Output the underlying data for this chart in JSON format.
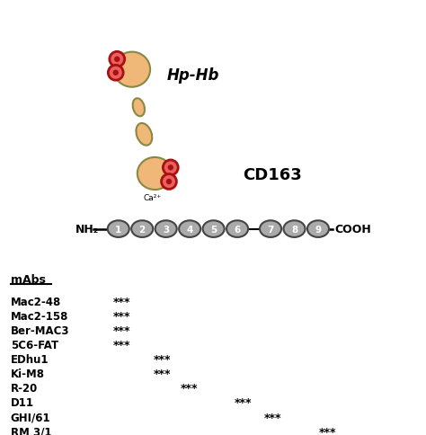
{
  "bg_color": "#ffffff",
  "domain_color": "#aaaaaa",
  "domain_edge_color": "#444444",
  "hp_hb_color": "#f0b878",
  "hp_hb_edge_color": "#888844",
  "heme_outer_color": "#e86060",
  "heme_inner_color": "#aa1010",
  "domains": [
    1,
    2,
    3,
    4,
    5,
    6,
    7,
    8,
    9
  ],
  "mabs_labels": [
    "Mac2-48",
    "Mac2-158",
    "Ber-MAC3",
    "5C6-FAT",
    "EDhu1",
    "Ki-M8",
    "R-20",
    "D11",
    "GHI/61",
    "RM 3/1"
  ],
  "mabs_stars_col": [
    1,
    1,
    1,
    1,
    2,
    2,
    3,
    5,
    6,
    8
  ],
  "cd163_label": "CD163",
  "hphb_label": "Hp-Hb",
  "nh2_label": "NH₂",
  "cooh_label": "COOH",
  "ca2_label": "Ca²⁺",
  "star_col_x": {
    "1": 0.285,
    "2": 0.38,
    "3": 0.445,
    "5": 0.57,
    "6": 0.64,
    "8": 0.77
  }
}
